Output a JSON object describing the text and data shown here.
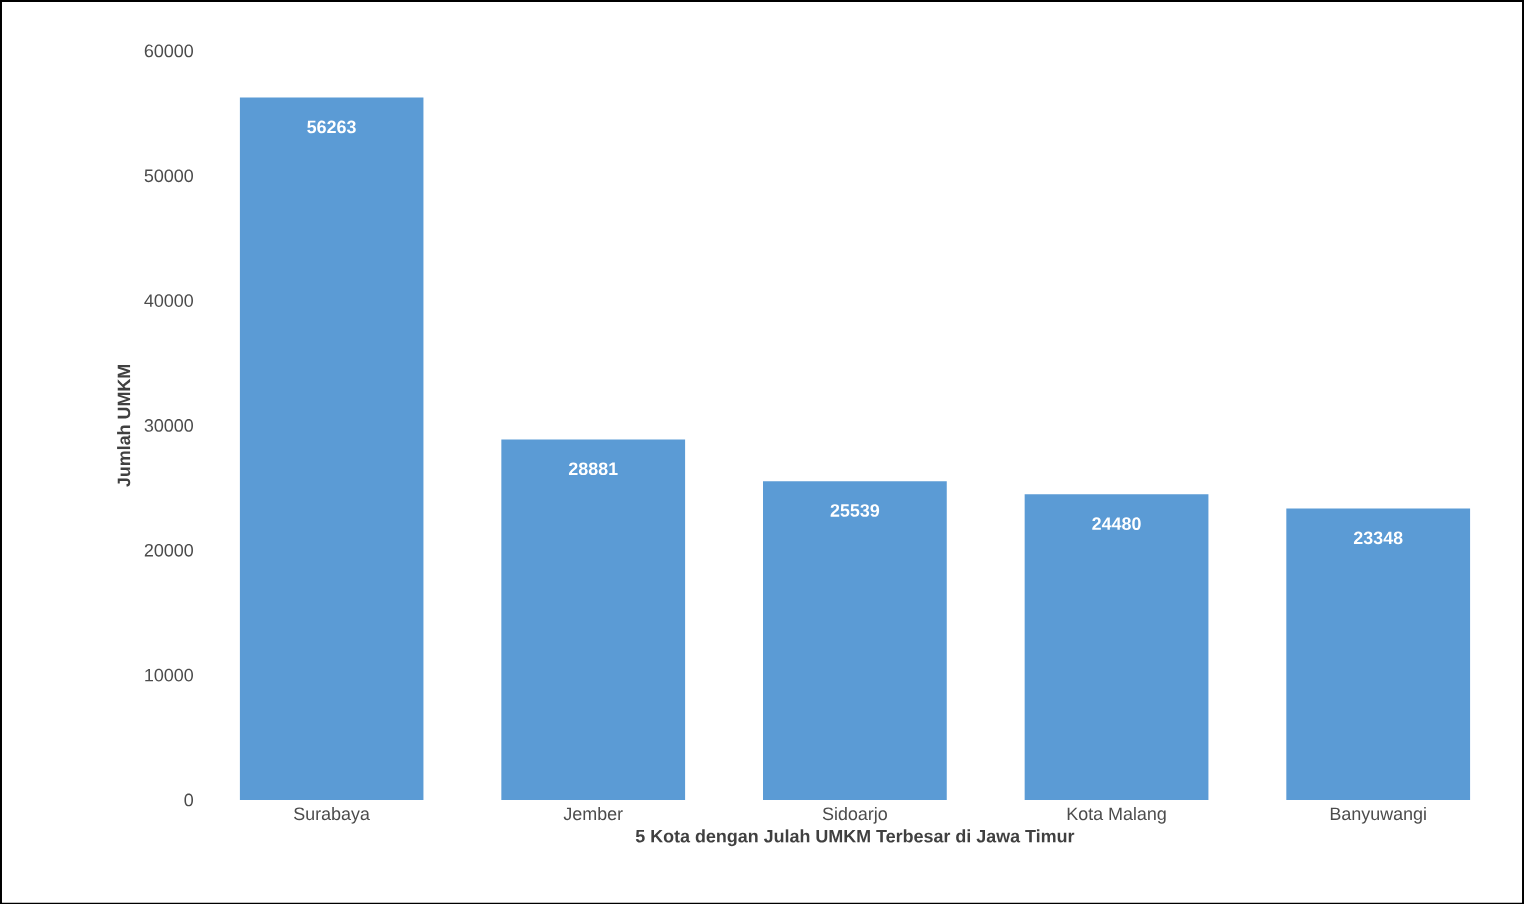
{
  "chart_data": {
    "type": "bar",
    "xlabel": "5 Kota dengan Julah UMKM Terbesar di Jawa Timur",
    "ylabel": "Jumlah UMKM",
    "categories": [
      "Surabaya",
      "Jember",
      "Sidoarjo",
      "Kota Malang",
      "Banyuwangi"
    ],
    "values": [
      56263,
      28881,
      25539,
      24480,
      23348
    ],
    "color": "#5b9bd5",
    "data_labels": true,
    "ylim": [
      0,
      60000
    ],
    "yticks": [
      0,
      10000,
      20000,
      30000,
      40000,
      50000,
      60000
    ],
    "grid": false
  }
}
